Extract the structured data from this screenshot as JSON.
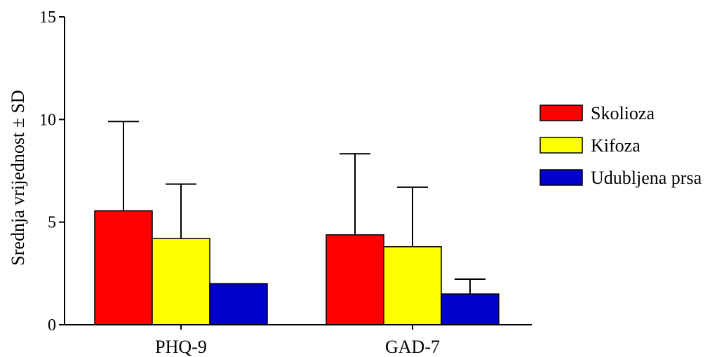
{
  "chart_data": {
    "type": "bar",
    "title": "",
    "xlabel": "",
    "ylabel": "Srednja vrijednost ± SD",
    "ylim": [
      0,
      15
    ],
    "yticks": [
      0,
      5,
      10,
      15
    ],
    "categories": [
      "PHQ-9",
      "GAD-7"
    ],
    "series": [
      {
        "name": "Skolioza",
        "color": "#ff0000",
        "values": [
          5.55,
          4.38
        ],
        "sd": [
          4.35,
          3.95
        ]
      },
      {
        "name": "Kifoza",
        "color": "#ffff00",
        "values": [
          4.2,
          3.8
        ],
        "sd": [
          2.65,
          2.9
        ]
      },
      {
        "name": "Udubljena prsa",
        "color": "#0000cc",
        "values": [
          2.0,
          1.5
        ],
        "sd": [
          0,
          0.72
        ]
      }
    ],
    "legend_position": "right",
    "grid": false
  }
}
